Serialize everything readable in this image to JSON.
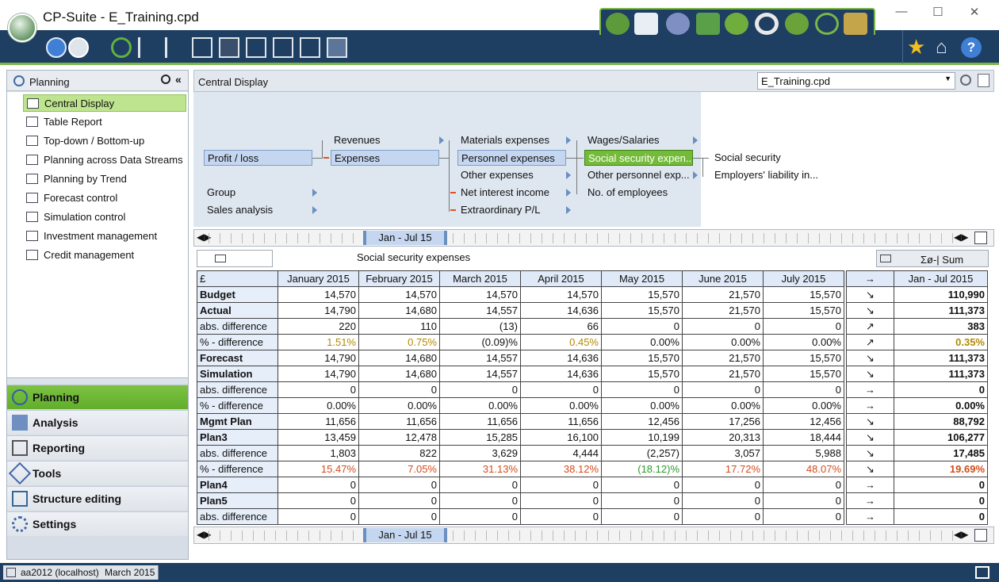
{
  "window": {
    "title": "CP-Suite - E_Training.cpd",
    "min": "—",
    "max": "☐",
    "close": "✕"
  },
  "left_panel": {
    "title": "Planning",
    "tree": [
      "Central Display",
      "Table Report",
      "Top-down / Bottom-up",
      "Planning across Data Streams",
      "Planning by Trend",
      "Forecast control",
      "Simulation control",
      "Investment management",
      "Credit management"
    ],
    "nav": [
      "Planning",
      "Analysis",
      "Reporting",
      "Tools",
      "Structure editing",
      "Settings"
    ]
  },
  "central": {
    "title": "Central Display",
    "file_select": "E_Training.cpd"
  },
  "structure": {
    "col1": {
      "profit_loss": "Profit / loss",
      "group": "Group",
      "sales_analysis": "Sales analysis"
    },
    "col2": {
      "revenues": "Revenues",
      "expenses": "Expenses"
    },
    "col3": [
      "Materials expenses",
      "Personnel expenses",
      "Other expenses",
      "Net interest income",
      "Extraordinary P/L"
    ],
    "col4": [
      "Wages/Salaries",
      "Social security expen...",
      "Other personnel exp...",
      "No. of employees"
    ],
    "col5": [
      "Social security",
      "Employers' liability in..."
    ]
  },
  "timeline": {
    "range": "Jan - Jul 15"
  },
  "grid": {
    "title": "Social security expenses",
    "sum_label": "Σø-| Sum",
    "currency": "£",
    "months": [
      "January 2015",
      "February 2015",
      "March 2015",
      "April 2015",
      "May 2015",
      "June 2015",
      "July 2015"
    ],
    "trend_header": "→",
    "total_header": "Jan - Jul 2015",
    "rows": [
      {
        "label": "Budget",
        "vals": [
          "14,570",
          "14,570",
          "14,570",
          "14,570",
          "15,570",
          "21,570",
          "15,570"
        ],
        "trend": "↘",
        "total": "110,990"
      },
      {
        "label": "Actual",
        "vals": [
          "14,790",
          "14,680",
          "14,557",
          "14,636",
          "15,570",
          "21,570",
          "15,570"
        ],
        "trend": "↘",
        "total": "111,373"
      },
      {
        "label": "abs. difference",
        "vals": [
          "220",
          "110",
          "(13)",
          "66",
          "0",
          "0",
          "0"
        ],
        "trend": "↗",
        "total": "383"
      },
      {
        "label": "% - difference",
        "vals": [
          "1.51%",
          "0.75%",
          "(0.09)%",
          "0.45%",
          "0.00%",
          "0.00%",
          "0.00%"
        ],
        "trend": "↗",
        "total": "0.35%"
      },
      {
        "label": "Forecast",
        "vals": [
          "14,790",
          "14,680",
          "14,557",
          "14,636",
          "15,570",
          "21,570",
          "15,570"
        ],
        "trend": "↘",
        "total": "111,373"
      },
      {
        "label": "Simulation",
        "vals": [
          "14,790",
          "14,680",
          "14,557",
          "14,636",
          "15,570",
          "21,570",
          "15,570"
        ],
        "trend": "↘",
        "total": "111,373"
      },
      {
        "label": "abs. difference",
        "vals": [
          "0",
          "0",
          "0",
          "0",
          "0",
          "0",
          "0"
        ],
        "trend": "→",
        "total": "0"
      },
      {
        "label": "% - difference",
        "vals": [
          "0.00%",
          "0.00%",
          "0.00%",
          "0.00%",
          "0.00%",
          "0.00%",
          "0.00%"
        ],
        "trend": "→",
        "total": "0.00%"
      },
      {
        "label": "Mgmt Plan",
        "vals": [
          "11,656",
          "11,656",
          "11,656",
          "11,656",
          "12,456",
          "17,256",
          "12,456"
        ],
        "trend": "↘",
        "total": "88,792"
      },
      {
        "label": "Plan3",
        "vals": [
          "13,459",
          "12,478",
          "15,285",
          "16,100",
          "10,199",
          "20,313",
          "18,444"
        ],
        "trend": "↘",
        "total": "106,277"
      },
      {
        "label": "abs. difference",
        "vals": [
          "1,803",
          "822",
          "3,629",
          "4,444",
          "(2,257)",
          "3,057",
          "5,988"
        ],
        "trend": "↘",
        "total": "17,485"
      },
      {
        "label": "% - difference",
        "vals": [
          "15.47%",
          "7.05%",
          "31.13%",
          "38.12%",
          "(18.12)%",
          "17.72%",
          "48.07%"
        ],
        "trend": "↘",
        "total": "19.69%"
      },
      {
        "label": "Plan4",
        "vals": [
          "0",
          "0",
          "0",
          "0",
          "0",
          "0",
          "0"
        ],
        "trend": "→",
        "total": "0"
      },
      {
        "label": "Plan5",
        "vals": [
          "0",
          "0",
          "0",
          "0",
          "0",
          "0",
          "0"
        ],
        "trend": "→",
        "total": "0"
      },
      {
        "label": "abs. difference",
        "vals": [
          "0",
          "0",
          "0",
          "0",
          "0",
          "0",
          "0"
        ],
        "trend": "→",
        "total": "0"
      }
    ]
  },
  "status": {
    "user": "aa2012 (localhost)",
    "period": "March 2015"
  },
  "colors": {
    "nav_bg": "#1e3e62",
    "accent_green": "#7ab648"
  }
}
